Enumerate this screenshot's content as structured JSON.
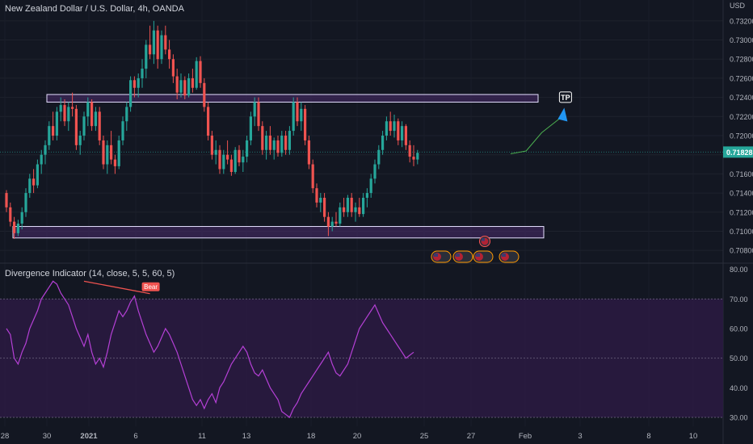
{
  "header": {
    "symbol_title": "New Zealand Dollar / U.S. Dollar, 4h, OANDA",
    "currency": "USD"
  },
  "indicator": {
    "title": "Divergence Indicator (14, close, 5, 5, 60, 5)",
    "bear_label": "Bear"
  },
  "colors": {
    "background": "#131722",
    "bull": "#26a69a",
    "bear": "#ef5350",
    "zone_border": "#e6e0ff",
    "zone_fill": "#4a2b6b",
    "rsi_line": "#b540d6",
    "rsi_band": "#2a1a40",
    "projection": "#4caf50",
    "tp_arrow": "#2196f3",
    "price_badge": "#26a69a"
  },
  "chart_data": [
    {
      "type": "candlestick",
      "title": "New Zealand Dollar / U.S. Dollar, 4h, OANDA",
      "ylabel": "USD",
      "ylim": [
        0.707,
        0.733
      ],
      "y_ticks": [
        "0.73200",
        "0.73000",
        "0.72800",
        "0.72600",
        "0.72400",
        "0.72200",
        "0.72000",
        "0.71800",
        "0.71600",
        "0.71400",
        "0.71200",
        "0.71000",
        "0.70800"
      ],
      "x_ticks": [
        "28",
        "30",
        "2021",
        "6",
        "11",
        "13",
        "18",
        "20",
        "25",
        "27",
        "Feb",
        "3",
        "8",
        "10"
      ],
      "current_price": "0.71828",
      "tp_label": "TP",
      "resistance_zone": [
        0.7235,
        0.7243
      ],
      "support_zone": [
        0.7093,
        0.7105
      ],
      "projection": [
        [
          130,
          0.7181
        ],
        [
          134,
          0.7184
        ],
        [
          138,
          0.7203
        ],
        [
          143,
          0.7219
        ]
      ],
      "candles": [
        [
          0.714,
          0.7143,
          0.712,
          0.7125
        ],
        [
          0.7125,
          0.713,
          0.7105,
          0.711
        ],
        [
          0.711,
          0.7115,
          0.7092,
          0.7098
        ],
        [
          0.7098,
          0.7112,
          0.7095,
          0.7108
        ],
        [
          0.7108,
          0.7125,
          0.7102,
          0.712
        ],
        [
          0.712,
          0.7145,
          0.7115,
          0.714
        ],
        [
          0.714,
          0.716,
          0.7135,
          0.7155
        ],
        [
          0.7155,
          0.7165,
          0.714,
          0.7148
        ],
        [
          0.7148,
          0.7175,
          0.7145,
          0.717
        ],
        [
          0.717,
          0.7185,
          0.716,
          0.718
        ],
        [
          0.718,
          0.7195,
          0.717,
          0.719
        ],
        [
          0.719,
          0.7215,
          0.7185,
          0.721
        ],
        [
          0.721,
          0.7225,
          0.7195,
          0.72
        ],
        [
          0.72,
          0.723,
          0.7195,
          0.7225
        ],
        [
          0.7225,
          0.724,
          0.7215,
          0.7232
        ],
        [
          0.7232,
          0.7238,
          0.721,
          0.7215
        ],
        [
          0.7215,
          0.7235,
          0.7205,
          0.723
        ],
        [
          0.723,
          0.7245,
          0.722,
          0.7228
        ],
        [
          0.7228,
          0.7232,
          0.7185,
          0.719
        ],
        [
          0.719,
          0.7205,
          0.718,
          0.72
        ],
        [
          0.72,
          0.7225,
          0.7195,
          0.722
        ],
        [
          0.722,
          0.724,
          0.721,
          0.7235
        ],
        [
          0.7235,
          0.7238,
          0.7205,
          0.721
        ],
        [
          0.721,
          0.723,
          0.7205,
          0.7225
        ],
        [
          0.7225,
          0.723,
          0.719,
          0.7195
        ],
        [
          0.7195,
          0.72,
          0.7165,
          0.717
        ],
        [
          0.717,
          0.7195,
          0.716,
          0.719
        ],
        [
          0.719,
          0.7205,
          0.717,
          0.7175
        ],
        [
          0.7175,
          0.718,
          0.716,
          0.7168
        ],
        [
          0.7168,
          0.72,
          0.7165,
          0.7195
        ],
        [
          0.7195,
          0.722,
          0.719,
          0.7215
        ],
        [
          0.7215,
          0.7235,
          0.7205,
          0.723
        ],
        [
          0.723,
          0.7262,
          0.7225,
          0.7258
        ],
        [
          0.7258,
          0.7262,
          0.724,
          0.725
        ],
        [
          0.725,
          0.7265,
          0.724,
          0.726
        ],
        [
          0.726,
          0.728,
          0.725,
          0.727
        ],
        [
          0.727,
          0.73,
          0.726,
          0.7295
        ],
        [
          0.7295,
          0.7315,
          0.728,
          0.7285
        ],
        [
          0.7285,
          0.732,
          0.7275,
          0.731
        ],
        [
          0.731,
          0.7315,
          0.727,
          0.728
        ],
        [
          0.728,
          0.731,
          0.7275,
          0.7305
        ],
        [
          0.7305,
          0.7315,
          0.7285,
          0.729
        ],
        [
          0.729,
          0.73,
          0.727,
          0.728
        ],
        [
          0.728,
          0.7285,
          0.7255,
          0.7262
        ],
        [
          0.7262,
          0.727,
          0.7238,
          0.7245
        ],
        [
          0.7245,
          0.7265,
          0.724,
          0.7258
        ],
        [
          0.7258,
          0.7262,
          0.7238,
          0.7242
        ],
        [
          0.7242,
          0.7265,
          0.724,
          0.726
        ],
        [
          0.726,
          0.727,
          0.7245,
          0.725
        ],
        [
          0.725,
          0.7282,
          0.7248,
          0.7278
        ],
        [
          0.7278,
          0.7283,
          0.725,
          0.7255
        ],
        [
          0.7255,
          0.726,
          0.7225,
          0.723
        ],
        [
          0.723,
          0.7235,
          0.7195,
          0.72
        ],
        [
          0.72,
          0.7205,
          0.7175,
          0.718
        ],
        [
          0.718,
          0.7195,
          0.717,
          0.7185
        ],
        [
          0.7185,
          0.719,
          0.716,
          0.7165
        ],
        [
          0.7165,
          0.7185,
          0.716,
          0.718
        ],
        [
          0.718,
          0.7195,
          0.717,
          0.7175
        ],
        [
          0.7175,
          0.718,
          0.7158,
          0.7162
        ],
        [
          0.7162,
          0.7188,
          0.716,
          0.7185
        ],
        [
          0.7185,
          0.719,
          0.7168,
          0.7172
        ],
        [
          0.7172,
          0.7185,
          0.7162,
          0.7178
        ],
        [
          0.7178,
          0.72,
          0.7172,
          0.7195
        ],
        [
          0.7195,
          0.7225,
          0.719,
          0.722
        ],
        [
          0.722,
          0.724,
          0.721,
          0.7235
        ],
        [
          0.7235,
          0.724,
          0.7205,
          0.721
        ],
        [
          0.721,
          0.7215,
          0.718,
          0.7185
        ],
        [
          0.7185,
          0.7205,
          0.7175,
          0.72
        ],
        [
          0.72,
          0.721,
          0.718,
          0.7185
        ],
        [
          0.7185,
          0.7198,
          0.7175,
          0.7195
        ],
        [
          0.7195,
          0.72,
          0.7178,
          0.7182
        ],
        [
          0.7182,
          0.7205,
          0.7178,
          0.72
        ],
        [
          0.72,
          0.7205,
          0.718,
          0.7185
        ],
        [
          0.7185,
          0.721,
          0.718,
          0.7205
        ],
        [
          0.7205,
          0.724,
          0.72,
          0.7235
        ],
        [
          0.7235,
          0.724,
          0.721,
          0.7215
        ],
        [
          0.7215,
          0.7235,
          0.7205,
          0.7228
        ],
        [
          0.7228,
          0.7232,
          0.719,
          0.7195
        ],
        [
          0.7195,
          0.72,
          0.7165,
          0.717
        ],
        [
          0.717,
          0.7175,
          0.714,
          0.7145
        ],
        [
          0.7145,
          0.715,
          0.7125,
          0.713
        ],
        [
          0.713,
          0.714,
          0.712,
          0.7135
        ],
        [
          0.7135,
          0.714,
          0.711,
          0.7115
        ],
        [
          0.7115,
          0.712,
          0.7095,
          0.7105
        ],
        [
          0.7105,
          0.7115,
          0.71,
          0.711
        ],
        [
          0.711,
          0.712,
          0.7105,
          0.7108
        ],
        [
          0.7108,
          0.713,
          0.7105,
          0.7125
        ],
        [
          0.7125,
          0.7135,
          0.7115,
          0.712
        ],
        [
          0.712,
          0.7138,
          0.7115,
          0.7135
        ],
        [
          0.7135,
          0.714,
          0.7115,
          0.712
        ],
        [
          0.712,
          0.713,
          0.711,
          0.7125
        ],
        [
          0.7125,
          0.7135,
          0.7115,
          0.7118
        ],
        [
          0.7118,
          0.714,
          0.7115,
          0.7135
        ],
        [
          0.7135,
          0.7145,
          0.7125,
          0.714
        ],
        [
          0.714,
          0.716,
          0.7135,
          0.7155
        ],
        [
          0.7155,
          0.7175,
          0.715,
          0.717
        ],
        [
          0.717,
          0.719,
          0.7165,
          0.7185
        ],
        [
          0.7185,
          0.7205,
          0.718,
          0.72
        ],
        [
          0.72,
          0.722,
          0.7195,
          0.7215
        ],
        [
          0.7215,
          0.7225,
          0.72,
          0.7205
        ],
        [
          0.7205,
          0.7222,
          0.7198,
          0.7215
        ],
        [
          0.7215,
          0.7218,
          0.719,
          0.7195
        ],
        [
          0.7195,
          0.7215,
          0.7188,
          0.721
        ],
        [
          0.721,
          0.7212,
          0.7185,
          0.719
        ],
        [
          0.719,
          0.7195,
          0.7172,
          0.7178
        ],
        [
          0.7178,
          0.719,
          0.7168,
          0.7175
        ],
        [
          0.7175,
          0.7185,
          0.717,
          0.7182
        ]
      ]
    },
    {
      "type": "line",
      "title": "Divergence Indicator (14, close, 5, 5, 60, 5)",
      "ylim": [
        27,
        81
      ],
      "y_ticks": [
        "80.00",
        "70.00",
        "60.00",
        "50.00",
        "40.00",
        "30.00"
      ],
      "bands": [
        30,
        50,
        70
      ],
      "divergence_line": [
        [
          20,
          76.0
        ],
        [
          37,
          71.8
        ]
      ],
      "values": [
        60,
        58,
        50,
        48,
        52,
        55,
        60,
        63,
        66,
        70,
        72,
        74,
        76,
        75,
        72,
        70,
        68,
        64,
        60,
        57,
        54,
        58,
        52,
        48,
        50,
        47,
        52,
        58,
        62,
        66,
        64,
        66,
        69,
        71,
        66,
        62,
        58,
        55,
        52,
        54,
        57,
        60,
        58,
        55,
        52,
        48,
        44,
        40,
        36,
        34,
        36,
        33,
        36,
        38,
        35,
        40,
        42,
        45,
        48,
        50,
        52,
        54,
        52,
        48,
        45,
        44,
        46,
        43,
        40,
        38,
        36,
        32,
        31,
        30,
        33,
        35,
        38,
        40,
        42,
        44,
        46,
        48,
        50,
        52,
        48,
        45,
        44,
        46,
        48,
        52,
        56,
        60,
        62,
        64,
        66,
        68,
        65,
        62,
        60,
        58,
        56,
        54,
        52,
        50,
        51,
        52
      ]
    }
  ]
}
